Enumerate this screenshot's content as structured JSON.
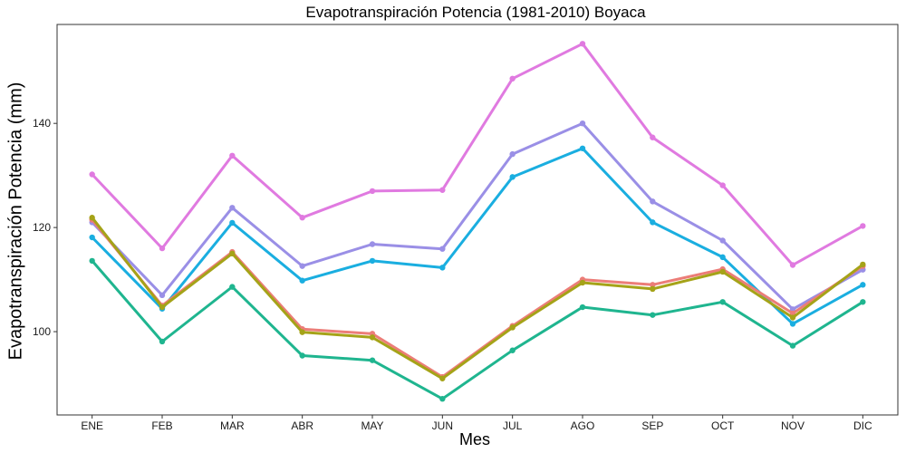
{
  "chart_data": {
    "type": "line",
    "title": "Evapotranspiración Potencia (1981-2010)  Boyaca",
    "xlabel": "Mes",
    "ylabel": "Evapotranspiración Potencia  (mm)",
    "categories": [
      "ENE",
      "FEB",
      "MAR",
      "ABR",
      "MAY",
      "JUN",
      "JUL",
      "AGO",
      "SEP",
      "OCT",
      "NOV",
      "DIC"
    ],
    "yticks": [
      100,
      120,
      140
    ],
    "ylim": [
      84,
      159
    ],
    "grid": false,
    "legend": "none",
    "series": [
      {
        "color": "#e07ae0",
        "values": [
          130.2,
          116.0,
          133.8,
          121.9,
          127.0,
          127.2,
          148.6,
          155.3,
          137.3,
          128.1,
          112.8,
          120.3
        ]
      },
      {
        "color": "#9a8fe6",
        "values": [
          121.0,
          107.0,
          123.8,
          112.6,
          116.8,
          115.9,
          134.1,
          140.0,
          125.0,
          117.5,
          104.3,
          111.9
        ]
      },
      {
        "color": "#1aaee0",
        "values": [
          118.1,
          104.4,
          120.9,
          109.8,
          113.6,
          112.3,
          129.7,
          135.2,
          121.0,
          114.3,
          101.5,
          109.0
        ]
      },
      {
        "color": "#ec7d78",
        "values": [
          121.5,
          105.0,
          115.3,
          100.5,
          99.6,
          91.3,
          101.1,
          110.0,
          109.0,
          112.0,
          103.5,
          112.6
        ]
      },
      {
        "color": "#a5a318",
        "values": [
          121.9,
          104.7,
          115.0,
          99.9,
          98.9,
          91.0,
          100.8,
          109.4,
          108.2,
          111.5,
          102.7,
          112.9
        ]
      },
      {
        "color": "#1fb58f",
        "values": [
          113.6,
          98.1,
          108.6,
          95.4,
          94.5,
          87.1,
          96.4,
          104.7,
          103.2,
          105.7,
          97.3,
          105.7
        ]
      }
    ]
  }
}
